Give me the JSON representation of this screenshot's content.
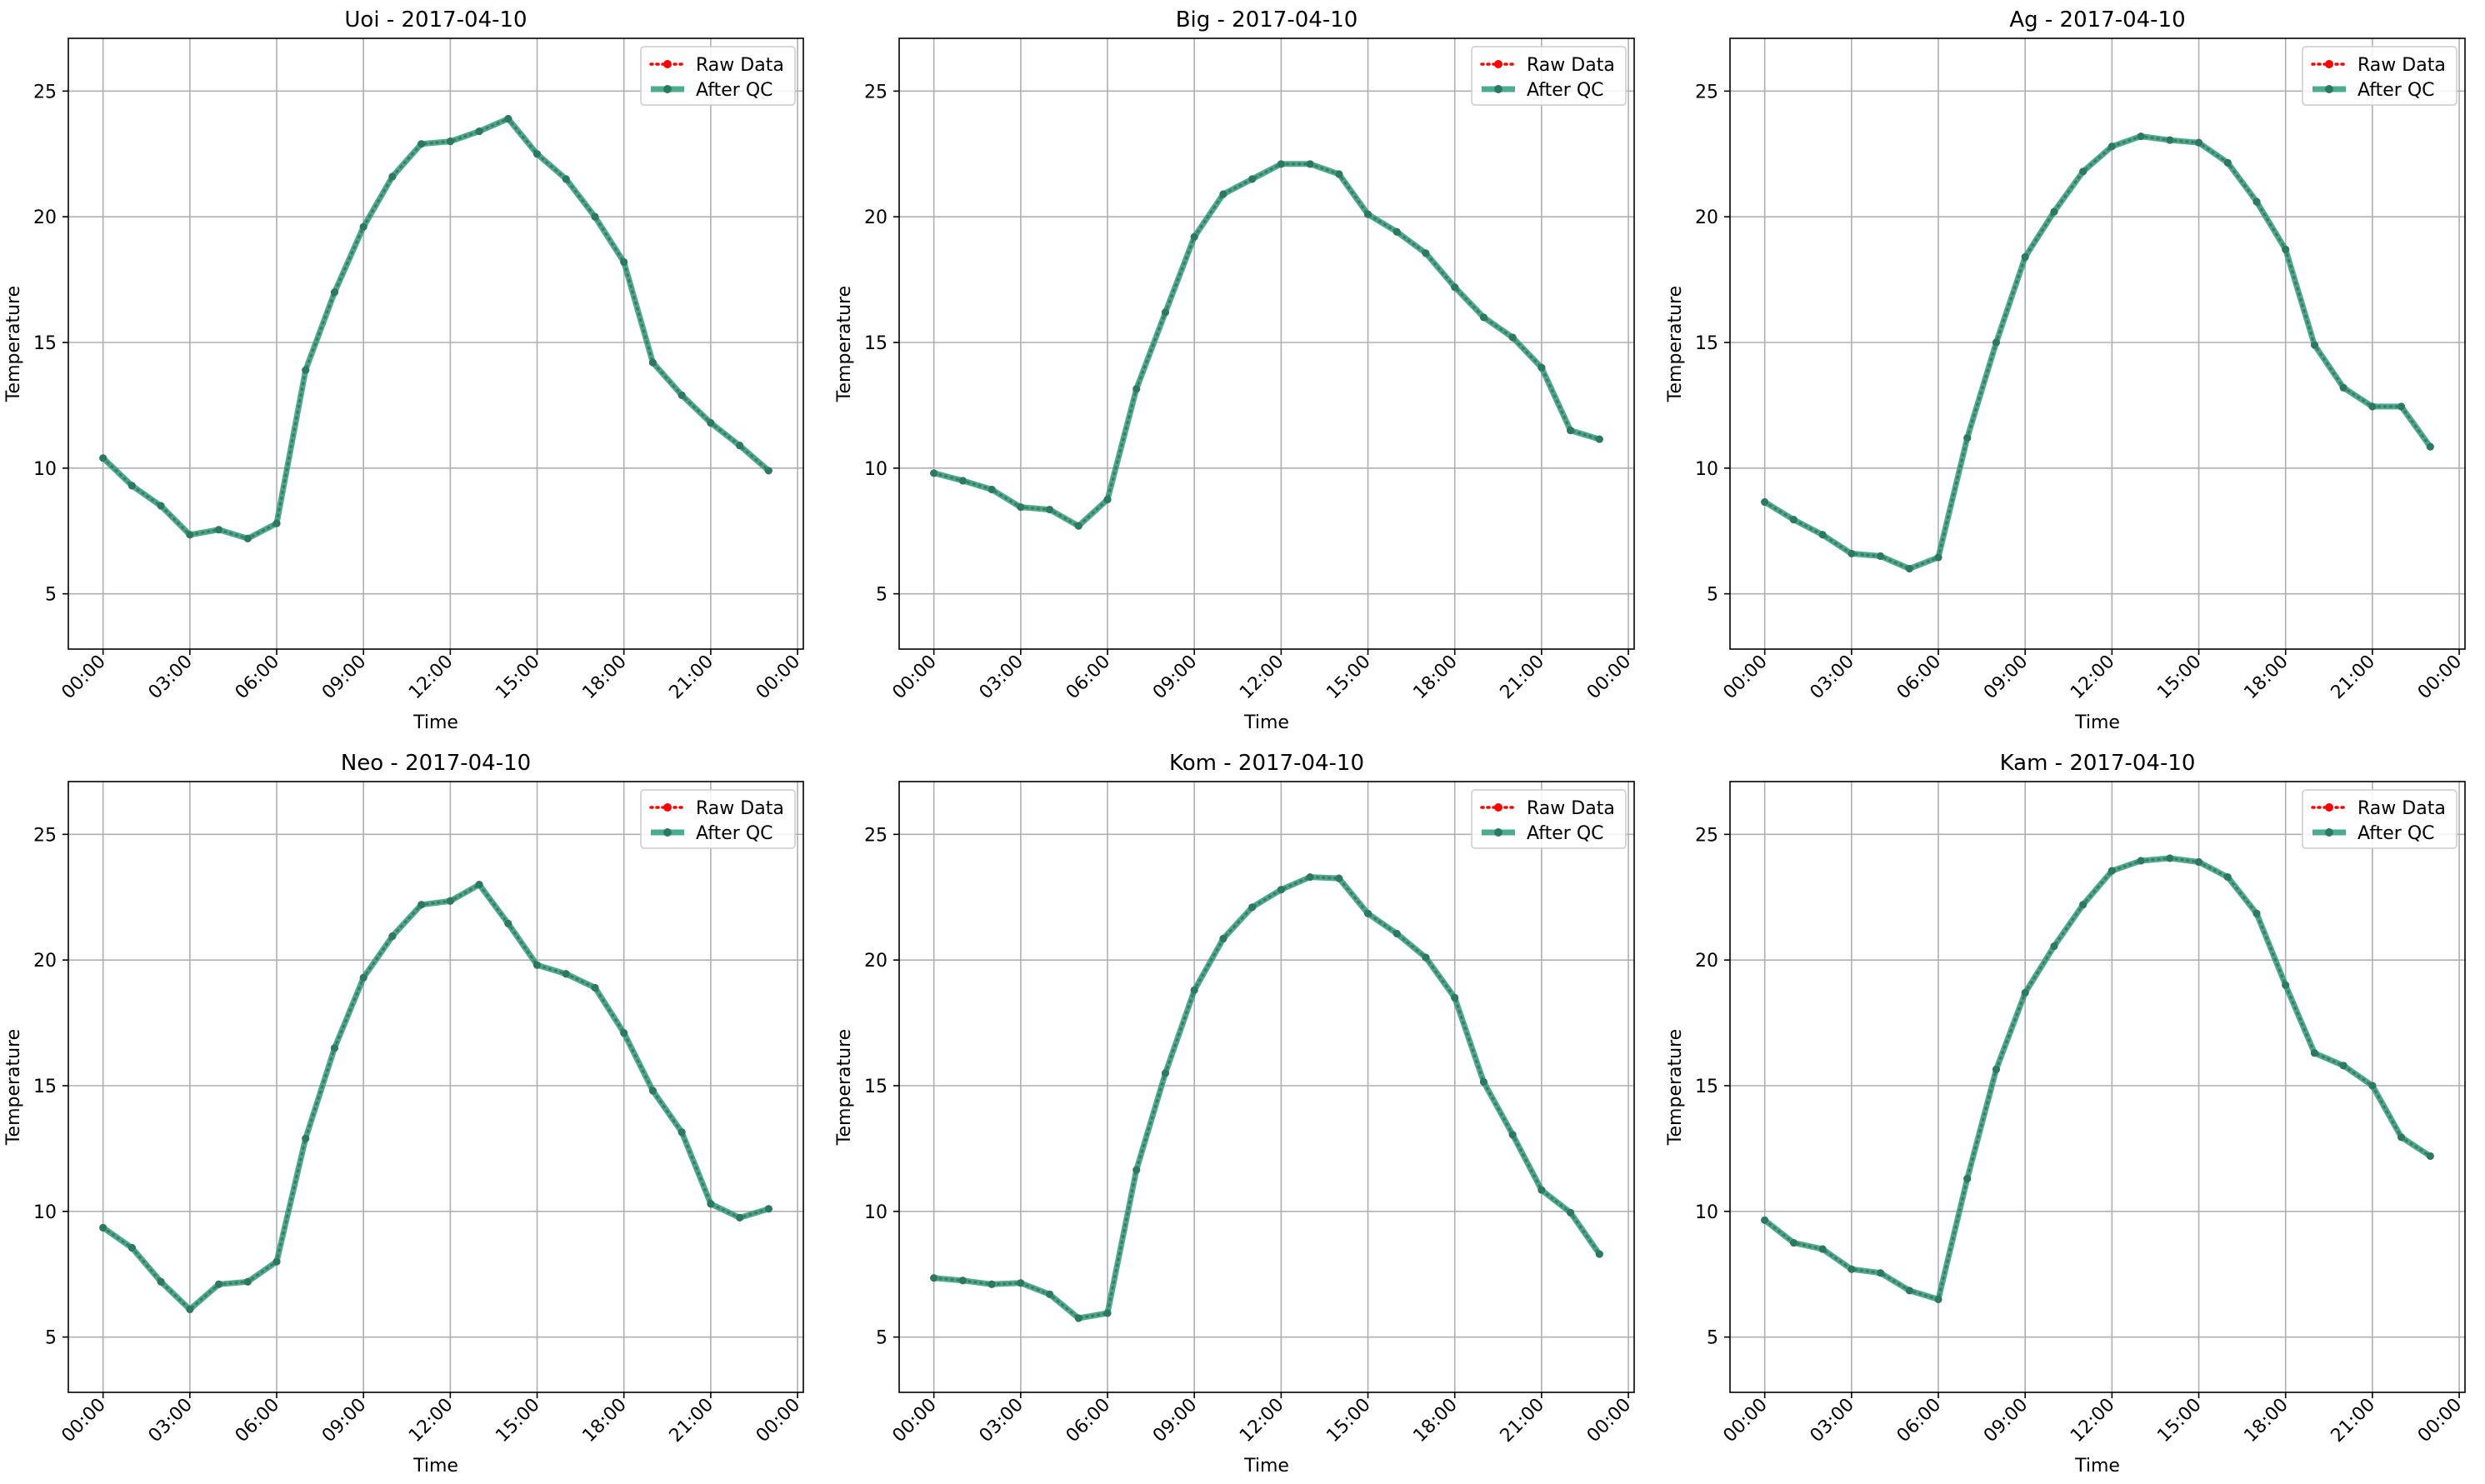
{
  "figure": {
    "rows": 2,
    "cols": 3
  },
  "style": {
    "raw_color": "#ff0000",
    "qc_color": "#2e9e7a",
    "qc_marker_color": "#2a7a62",
    "grid_color": "#b0b0b0",
    "axis_color": "#000000"
  },
  "legend_labels": {
    "raw": "Raw Data",
    "qc": "After QC"
  },
  "chart_data": [
    {
      "type": "line",
      "title": "Uoi - 2017-04-10",
      "xlabel": "Time",
      "ylabel": "Temperature",
      "x_hours": [
        0,
        1,
        2,
        3,
        4,
        5,
        6,
        7,
        8,
        9,
        10,
        11,
        12,
        13,
        14,
        15,
        16,
        17,
        18,
        19,
        20,
        21,
        22,
        23
      ],
      "xticks": [
        "00:00",
        "03:00",
        "06:00",
        "09:00",
        "12:00",
        "15:00",
        "18:00",
        "21:00",
        "00:00"
      ],
      "xlim": [
        -1.2,
        24.2
      ],
      "ylim": [
        2.8,
        27.1
      ],
      "yticks": [
        5,
        10,
        15,
        20,
        25
      ],
      "grid": true,
      "legend": "top-right",
      "series": [
        {
          "name": "Raw Data",
          "values": [
            10.4,
            9.3,
            8.5,
            7.35,
            7.55,
            7.2,
            7.8,
            13.9,
            17.0,
            19.6,
            21.6,
            22.9,
            23.0,
            23.4,
            23.9,
            22.5,
            21.5,
            20.0,
            18.2,
            14.2,
            12.9,
            11.8,
            10.9,
            9.9
          ]
        },
        {
          "name": "After QC",
          "values": [
            10.4,
            9.3,
            8.5,
            7.35,
            7.55,
            7.2,
            7.8,
            13.9,
            17.0,
            19.6,
            21.6,
            22.9,
            23.0,
            23.4,
            23.9,
            22.5,
            21.5,
            20.0,
            18.2,
            14.2,
            12.9,
            11.8,
            10.9,
            9.9
          ]
        }
      ]
    },
    {
      "type": "line",
      "title": "Big - 2017-04-10",
      "xlabel": "Time",
      "ylabel": "Temperature",
      "x_hours": [
        0,
        1,
        2,
        3,
        4,
        5,
        6,
        7,
        8,
        9,
        10,
        11,
        12,
        13,
        14,
        15,
        16,
        17,
        18,
        19,
        20,
        21,
        22,
        23
      ],
      "xticks": [
        "00:00",
        "03:00",
        "06:00",
        "09:00",
        "12:00",
        "15:00",
        "18:00",
        "21:00",
        "00:00"
      ],
      "xlim": [
        -1.2,
        24.2
      ],
      "ylim": [
        2.8,
        27.1
      ],
      "yticks": [
        5,
        10,
        15,
        20,
        25
      ],
      "grid": true,
      "legend": "top-right",
      "series": [
        {
          "name": "Raw Data",
          "values": [
            9.8,
            9.5,
            9.15,
            8.45,
            8.35,
            7.7,
            8.75,
            13.15,
            16.2,
            19.2,
            20.9,
            21.5,
            22.1,
            22.1,
            21.7,
            20.1,
            19.4,
            18.55,
            17.2,
            16.0,
            15.2,
            14.0,
            11.5,
            11.15
          ]
        },
        {
          "name": "After QC",
          "values": [
            9.8,
            9.5,
            9.15,
            8.45,
            8.35,
            7.7,
            8.75,
            13.15,
            16.2,
            19.2,
            20.9,
            21.5,
            22.1,
            22.1,
            21.7,
            20.1,
            19.4,
            18.55,
            17.2,
            16.0,
            15.2,
            14.0,
            11.5,
            11.15
          ]
        }
      ]
    },
    {
      "type": "line",
      "title": "Ag - 2017-04-10",
      "xlabel": "Time",
      "ylabel": "Temperature",
      "x_hours": [
        0,
        1,
        2,
        3,
        4,
        5,
        6,
        7,
        8,
        9,
        10,
        11,
        12,
        13,
        14,
        15,
        16,
        17,
        18,
        19,
        20,
        21,
        22,
        23
      ],
      "xticks": [
        "00:00",
        "03:00",
        "06:00",
        "09:00",
        "12:00",
        "15:00",
        "18:00",
        "21:00",
        "00:00"
      ],
      "xlim": [
        -1.2,
        24.2
      ],
      "ylim": [
        2.8,
        27.1
      ],
      "yticks": [
        5,
        10,
        15,
        20,
        25
      ],
      "grid": true,
      "legend": "top-right",
      "series": [
        {
          "name": "Raw Data",
          "values": [
            8.65,
            7.95,
            7.35,
            6.6,
            6.5,
            6.0,
            6.45,
            11.2,
            15.0,
            18.4,
            20.2,
            21.8,
            22.8,
            23.2,
            23.05,
            22.95,
            22.15,
            20.6,
            18.7,
            14.9,
            13.2,
            12.45,
            12.45,
            10.85
          ]
        },
        {
          "name": "After QC",
          "values": [
            8.65,
            7.95,
            7.35,
            6.6,
            6.5,
            6.0,
            6.45,
            11.2,
            15.0,
            18.4,
            20.2,
            21.8,
            22.8,
            23.2,
            23.05,
            22.95,
            22.15,
            20.6,
            18.7,
            14.9,
            13.2,
            12.45,
            12.45,
            10.85
          ]
        }
      ]
    },
    {
      "type": "line",
      "title": "Neo - 2017-04-10",
      "xlabel": "Time",
      "ylabel": "Temperature",
      "x_hours": [
        0,
        1,
        2,
        3,
        4,
        5,
        6,
        7,
        8,
        9,
        10,
        11,
        12,
        13,
        14,
        15,
        16,
        17,
        18,
        19,
        20,
        21,
        22,
        23
      ],
      "xticks": [
        "00:00",
        "03:00",
        "06:00",
        "09:00",
        "12:00",
        "15:00",
        "18:00",
        "21:00",
        "00:00"
      ],
      "xlim": [
        -1.2,
        24.2
      ],
      "ylim": [
        2.8,
        27.1
      ],
      "yticks": [
        5,
        10,
        15,
        20,
        25
      ],
      "grid": true,
      "legend": "top-right",
      "series": [
        {
          "name": "Raw Data",
          "values": [
            9.35,
            8.55,
            7.2,
            6.1,
            7.1,
            7.2,
            8.0,
            12.9,
            16.5,
            19.3,
            20.95,
            22.2,
            22.35,
            23.0,
            21.45,
            19.8,
            19.45,
            18.9,
            17.1,
            14.8,
            13.15,
            10.3,
            9.75,
            10.1
          ]
        },
        {
          "name": "After QC",
          "values": [
            9.35,
            8.55,
            7.2,
            6.1,
            7.1,
            7.2,
            8.0,
            12.9,
            16.5,
            19.3,
            20.95,
            22.2,
            22.35,
            23.0,
            21.45,
            19.8,
            19.45,
            18.9,
            17.1,
            14.8,
            13.15,
            10.3,
            9.75,
            10.1
          ]
        }
      ]
    },
    {
      "type": "line",
      "title": "Kom - 2017-04-10",
      "xlabel": "Time",
      "ylabel": "Temperature",
      "x_hours": [
        0,
        1,
        2,
        3,
        4,
        5,
        6,
        7,
        8,
        9,
        10,
        11,
        12,
        13,
        14,
        15,
        16,
        17,
        18,
        19,
        20,
        21,
        22,
        23
      ],
      "xticks": [
        "00:00",
        "03:00",
        "06:00",
        "09:00",
        "12:00",
        "15:00",
        "18:00",
        "21:00",
        "00:00"
      ],
      "xlim": [
        -1.2,
        24.2
      ],
      "ylim": [
        2.8,
        27.1
      ],
      "yticks": [
        5,
        10,
        15,
        20,
        25
      ],
      "grid": true,
      "legend": "top-right",
      "series": [
        {
          "name": "Raw Data",
          "values": [
            7.35,
            7.25,
            7.1,
            7.15,
            6.7,
            5.75,
            5.95,
            11.65,
            15.5,
            18.8,
            20.85,
            22.1,
            22.8,
            23.3,
            23.25,
            21.85,
            21.05,
            20.1,
            18.5,
            15.15,
            13.05,
            10.85,
            9.95,
            8.3
          ]
        },
        {
          "name": "After QC",
          "values": [
            7.35,
            7.25,
            7.1,
            7.15,
            6.7,
            5.75,
            5.95,
            11.65,
            15.5,
            18.8,
            20.85,
            22.1,
            22.8,
            23.3,
            23.25,
            21.85,
            21.05,
            20.1,
            18.5,
            15.15,
            13.05,
            10.85,
            9.95,
            8.3
          ]
        }
      ]
    },
    {
      "type": "line",
      "title": "Kam - 2017-04-10",
      "xlabel": "Time",
      "ylabel": "Temperature",
      "x_hours": [
        0,
        1,
        2,
        3,
        4,
        5,
        6,
        7,
        8,
        9,
        10,
        11,
        12,
        13,
        14,
        15,
        16,
        17,
        18,
        19,
        20,
        21,
        22,
        23
      ],
      "xticks": [
        "00:00",
        "03:00",
        "06:00",
        "09:00",
        "12:00",
        "15:00",
        "18:00",
        "21:00",
        "00:00"
      ],
      "xlim": [
        -1.2,
        24.2
      ],
      "ylim": [
        2.8,
        27.1
      ],
      "yticks": [
        5,
        10,
        15,
        20,
        25
      ],
      "grid": true,
      "legend": "top-right",
      "series": [
        {
          "name": "Raw Data",
          "values": [
            9.65,
            8.75,
            8.5,
            7.7,
            7.55,
            6.85,
            6.5,
            11.3,
            15.65,
            18.7,
            20.55,
            22.2,
            23.55,
            23.95,
            24.05,
            23.9,
            23.3,
            21.85,
            19.0,
            16.3,
            15.8,
            15.0,
            12.95,
            12.2
          ]
        },
        {
          "name": "After QC",
          "values": [
            9.65,
            8.75,
            8.5,
            7.7,
            7.55,
            6.85,
            6.5,
            11.3,
            15.65,
            18.7,
            20.55,
            22.2,
            23.55,
            23.95,
            24.05,
            23.9,
            23.3,
            21.85,
            19.0,
            16.3,
            15.8,
            15.0,
            12.95,
            12.2
          ]
        }
      ]
    }
  ]
}
